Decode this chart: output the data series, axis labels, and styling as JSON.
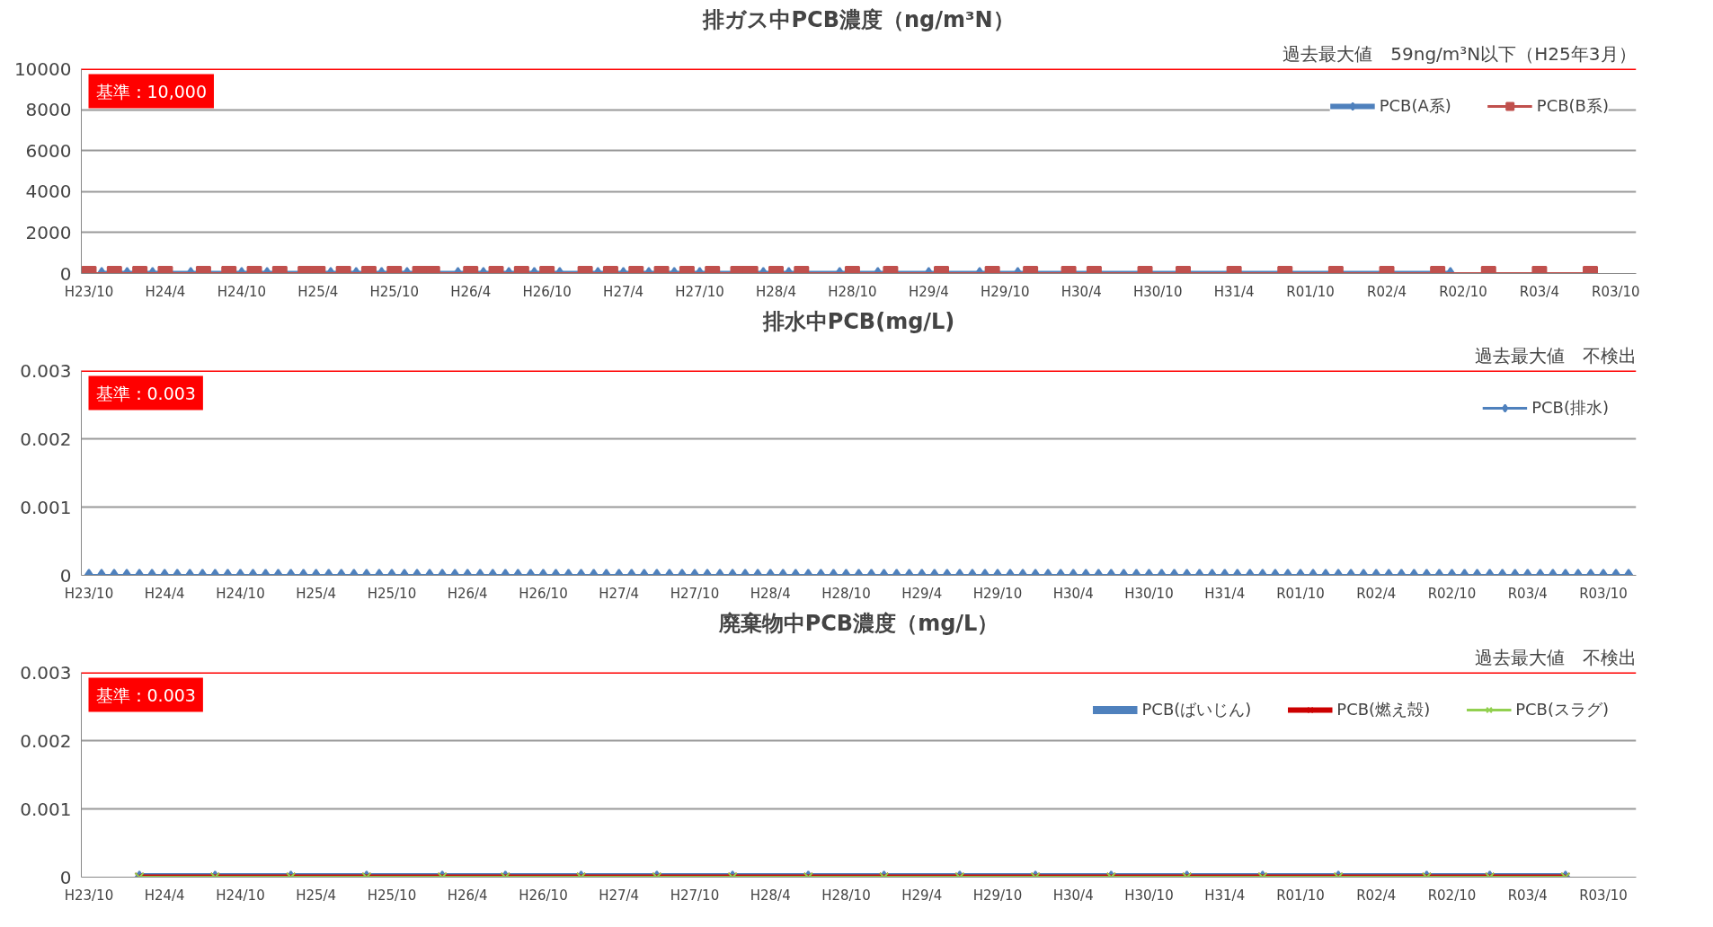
{
  "chart_data": [
    {
      "type": "line",
      "title": "排ガス中PCB濃度（ng/m³N）",
      "annotations": [
        "過去最大値　59ng/m³N以下（H25年3月）"
      ],
      "categories": [
        "H23/10",
        null,
        null,
        null,
        null,
        null,
        "H24/4",
        null,
        null,
        null,
        null,
        null,
        "H24/10",
        null,
        null,
        null,
        null,
        null,
        "H25/4",
        null,
        null,
        null,
        null,
        null,
        "H25/10",
        null,
        null,
        null,
        null,
        null,
        "H26/4",
        null,
        null,
        null,
        null,
        null,
        "H26/10",
        null,
        null,
        null,
        null,
        null,
        "H27/4",
        null,
        null,
        null,
        null,
        null,
        "H27/10",
        null,
        null,
        null,
        null,
        null,
        "H28/4",
        null,
        null,
        null,
        null,
        null,
        "H28/10",
        null,
        null,
        null,
        null,
        null,
        "H29/4",
        null,
        null,
        null,
        null,
        null,
        "H29/10",
        null,
        null,
        null,
        null,
        null,
        "H30/4",
        null,
        null,
        null,
        null,
        null,
        "H30/10",
        null,
        null,
        null,
        null,
        null,
        "H31/4",
        null,
        null,
        null,
        null,
        null,
        "R01/10",
        null,
        null,
        null,
        null,
        null,
        "R02/4",
        null,
        null,
        null,
        null,
        null,
        "R02/10",
        null,
        null,
        null,
        null,
        null,
        "R03/4",
        null,
        null,
        null,
        null,
        null,
        "R03/10",
        null
      ],
      "series": [
        {
          "name": "PCB(A系)",
          "color": "#4f81bd",
          "marker": "diamond",
          "values": [
            null,
            0,
            null,
            0,
            null,
            0,
            null,
            null,
            0,
            null,
            null,
            null,
            0,
            null,
            0,
            null,
            null,
            0,
            null,
            0,
            null,
            0,
            null,
            0,
            null,
            0,
            null,
            null,
            null,
            0,
            null,
            0,
            null,
            0,
            null,
            0,
            null,
            0,
            null,
            null,
            0,
            null,
            0,
            null,
            0,
            null,
            0,
            null,
            0,
            null,
            null,
            null,
            null,
            0,
            null,
            0,
            null,
            null,
            null,
            0,
            null,
            null,
            0,
            null,
            null,
            null,
            0,
            null,
            null,
            null,
            0,
            null,
            null,
            0,
            null,
            null,
            null,
            0,
            null,
            0,
            null,
            null,
            null,
            0,
            null,
            null,
            0,
            null,
            null,
            null,
            0,
            null,
            null,
            null,
            0,
            null,
            null,
            null,
            0,
            null,
            null,
            null,
            0,
            null,
            null,
            null,
            null,
            0,
            null,
            null,
            null,
            null,
            null,
            null,
            null,
            null,
            null,
            null,
            null,
            null,
            null,
            null
          ]
        },
        {
          "name": "PCB(B系)",
          "color": "#c0504d",
          "marker": "square",
          "values": [
            0,
            null,
            0,
            null,
            0,
            null,
            0,
            null,
            null,
            0,
            null,
            0,
            null,
            0,
            null,
            0,
            null,
            0,
            0,
            null,
            0,
            null,
            0,
            null,
            0,
            null,
            0,
            0,
            null,
            null,
            0,
            null,
            0,
            null,
            0,
            null,
            0,
            null,
            null,
            0,
            null,
            0,
            null,
            0,
            null,
            0,
            null,
            0,
            null,
            0,
            null,
            0,
            0,
            null,
            0,
            null,
            0,
            null,
            null,
            null,
            0,
            null,
            null,
            0,
            null,
            null,
            null,
            0,
            null,
            null,
            null,
            0,
            null,
            null,
            0,
            null,
            null,
            0,
            null,
            0,
            null,
            null,
            null,
            0,
            null,
            null,
            0,
            null,
            null,
            null,
            0,
            null,
            null,
            null,
            0,
            null,
            null,
            null,
            0,
            null,
            null,
            null,
            0,
            null,
            null,
            null,
            0,
            null,
            null,
            null,
            0,
            null,
            null,
            null,
            0,
            null,
            null,
            null,
            0,
            null,
            null,
            null
          ]
        }
      ],
      "ylim": [
        0,
        10000
      ],
      "yticks": [
        0,
        2000,
        4000,
        6000,
        8000,
        10000
      ],
      "grid": "y",
      "legend": "top right",
      "ref_lines": [
        {
          "axis": "y",
          "value": 10000,
          "label": "基準：10,000",
          "color": "#ff0000"
        }
      ]
    },
    {
      "type": "line",
      "title": "排水中PCB(mg/L)",
      "annotations": [
        "過去最大値　不検出"
      ],
      "categories": [
        "H23/10",
        null,
        null,
        null,
        null,
        null,
        "H24/4",
        null,
        null,
        null,
        null,
        null,
        "H24/10",
        null,
        null,
        null,
        null,
        null,
        "H25/4",
        null,
        null,
        null,
        null,
        null,
        "H25/10",
        null,
        null,
        null,
        null,
        null,
        "H26/4",
        null,
        null,
        null,
        null,
        null,
        "H26/10",
        null,
        null,
        null,
        null,
        null,
        "H27/4",
        null,
        null,
        null,
        null,
        null,
        "H27/10",
        null,
        null,
        null,
        null,
        null,
        "H28/4",
        null,
        null,
        null,
        null,
        null,
        "H28/10",
        null,
        null,
        null,
        null,
        null,
        "H29/4",
        null,
        null,
        null,
        null,
        null,
        "H29/10",
        null,
        null,
        null,
        null,
        null,
        "H30/4",
        null,
        null,
        null,
        null,
        null,
        "H30/10",
        null,
        null,
        null,
        null,
        null,
        "H31/4",
        null,
        null,
        null,
        null,
        null,
        "R01/10",
        null,
        null,
        null,
        null,
        null,
        "R02/4",
        null,
        null,
        null,
        null,
        null,
        "R02/10",
        null,
        null,
        null,
        null,
        null,
        "R03/4",
        null,
        null,
        null,
        null,
        null,
        "R03/10",
        null,
        null
      ],
      "series": [
        {
          "name": "PCB(排水)",
          "color": "#4f81bd",
          "marker": "diamond",
          "values": [
            0,
            0,
            0,
            0,
            0,
            0,
            0,
            0,
            0,
            0,
            0,
            0,
            0,
            0,
            0,
            0,
            0,
            0,
            0,
            0,
            0,
            0,
            0,
            0,
            0,
            0,
            0,
            0,
            0,
            0,
            0,
            0,
            0,
            0,
            0,
            0,
            0,
            0,
            0,
            0,
            0,
            0,
            0,
            0,
            0,
            0,
            0,
            0,
            0,
            0,
            0,
            0,
            0,
            0,
            0,
            0,
            0,
            0,
            0,
            0,
            0,
            0,
            0,
            0,
            0,
            0,
            0,
            0,
            0,
            0,
            0,
            0,
            0,
            0,
            0,
            0,
            0,
            0,
            0,
            0,
            0,
            0,
            0,
            0,
            0,
            0,
            0,
            0,
            0,
            0,
            0,
            0,
            0,
            0,
            0,
            0,
            0,
            0,
            0,
            0,
            0,
            0,
            0,
            0,
            0,
            0,
            0,
            0,
            0,
            0,
            0,
            0,
            0,
            0,
            0,
            0,
            0,
            0,
            0,
            0,
            0,
            0,
            0
          ]
        }
      ],
      "ylim": [
        0,
        0.003
      ],
      "yticks": [
        0,
        0.001,
        0.002,
        0.003
      ],
      "grid": "y",
      "legend": "top right",
      "ref_lines": [
        {
          "axis": "y",
          "value": 0.003,
          "label": "基準：0.003",
          "color": "#ff0000"
        }
      ]
    },
    {
      "type": "line",
      "title": "廃棄物中PCB濃度（mg/L）",
      "annotations": [
        "過去最大値　不検出"
      ],
      "categories": [
        "H23/10",
        null,
        null,
        null,
        null,
        null,
        "H24/4",
        null,
        null,
        null,
        null,
        null,
        "H24/10",
        null,
        null,
        null,
        null,
        null,
        "H25/4",
        null,
        null,
        null,
        null,
        null,
        "H25/10",
        null,
        null,
        null,
        null,
        null,
        "H26/4",
        null,
        null,
        null,
        null,
        null,
        "H26/10",
        null,
        null,
        null,
        null,
        null,
        "H27/4",
        null,
        null,
        null,
        null,
        null,
        "H27/10",
        null,
        null,
        null,
        null,
        null,
        "H28/4",
        null,
        null,
        null,
        null,
        null,
        "H28/10",
        null,
        null,
        null,
        null,
        null,
        "H29/4",
        null,
        null,
        null,
        null,
        null,
        "H29/10",
        null,
        null,
        null,
        null,
        null,
        "H30/4",
        null,
        null,
        null,
        null,
        null,
        "H30/10",
        null,
        null,
        null,
        null,
        null,
        "H31/4",
        null,
        null,
        null,
        null,
        null,
        "R01/10",
        null,
        null,
        null,
        null,
        null,
        "R02/4",
        null,
        null,
        null,
        null,
        null,
        "R02/10",
        null,
        null,
        null,
        null,
        null,
        "R03/4",
        null,
        null,
        null,
        null,
        null,
        "R03/10",
        null,
        null
      ],
      "series": [
        {
          "name": "PCB(ばいじん)",
          "color": "#4f81bd",
          "marker": "diamond",
          "values": [
            null,
            null,
            null,
            null,
            0,
            null,
            null,
            null,
            null,
            null,
            0,
            null,
            null,
            null,
            null,
            null,
            0,
            null,
            null,
            null,
            null,
            null,
            0,
            null,
            null,
            null,
            null,
            null,
            0,
            null,
            null,
            null,
            null,
            0,
            null,
            null,
            null,
            null,
            null,
            0,
            null,
            null,
            null,
            null,
            null,
            0,
            null,
            null,
            null,
            null,
            null,
            0,
            null,
            null,
            null,
            null,
            null,
            0,
            null,
            null,
            null,
            null,
            null,
            0,
            null,
            null,
            null,
            null,
            null,
            0,
            null,
            null,
            null,
            null,
            null,
            0,
            null,
            null,
            null,
            null,
            null,
            0,
            null,
            null,
            null,
            null,
            null,
            0,
            null,
            null,
            null,
            null,
            null,
            0,
            null,
            null,
            null,
            null,
            null,
            0,
            null,
            null,
            null,
            null,
            null,
            null,
            0,
            null,
            null,
            null,
            null,
            0,
            null,
            null,
            null,
            null,
            null,
            0,
            null,
            null,
            null,
            null,
            null
          ]
        },
        {
          "name": "PCB(燃え殻)",
          "color": "#cc0000",
          "marker": "cross",
          "values": [
            null,
            null,
            null,
            null,
            0,
            null,
            null,
            null,
            null,
            null,
            0,
            null,
            null,
            null,
            null,
            null,
            0,
            null,
            null,
            null,
            null,
            null,
            0,
            null,
            null,
            null,
            null,
            null,
            0,
            null,
            null,
            null,
            null,
            0,
            null,
            null,
            null,
            null,
            null,
            0,
            null,
            null,
            null,
            null,
            null,
            0,
            null,
            null,
            null,
            null,
            null,
            0,
            null,
            null,
            null,
            null,
            null,
            0,
            null,
            null,
            null,
            null,
            null,
            0,
            null,
            null,
            null,
            null,
            null,
            0,
            null,
            null,
            null,
            null,
            null,
            0,
            null,
            null,
            null,
            null,
            null,
            0,
            null,
            null,
            null,
            null,
            null,
            0,
            null,
            null,
            null,
            null,
            null,
            0,
            null,
            null,
            null,
            null,
            null,
            0,
            null,
            null,
            null,
            null,
            null,
            null,
            0,
            null,
            null,
            null,
            null,
            0,
            null,
            null,
            null,
            null,
            null,
            0,
            null,
            null,
            null,
            null,
            null
          ]
        },
        {
          "name": "PCB(スラグ)",
          "color": "#92d050",
          "marker": "cross",
          "values": [
            null,
            null,
            null,
            null,
            0,
            null,
            null,
            null,
            null,
            null,
            0,
            null,
            null,
            null,
            null,
            null,
            0,
            null,
            null,
            null,
            null,
            null,
            0,
            null,
            null,
            null,
            null,
            null,
            0,
            null,
            null,
            null,
            null,
            0,
            null,
            null,
            null,
            null,
            null,
            0,
            null,
            null,
            null,
            null,
            null,
            0,
            null,
            null,
            null,
            null,
            null,
            0,
            null,
            null,
            null,
            null,
            null,
            0,
            null,
            null,
            null,
            null,
            null,
            0,
            null,
            null,
            null,
            null,
            null,
            0,
            null,
            null,
            null,
            null,
            null,
            0,
            null,
            null,
            null,
            null,
            null,
            0,
            null,
            null,
            null,
            null,
            null,
            0,
            null,
            null,
            null,
            null,
            null,
            0,
            null,
            null,
            null,
            null,
            null,
            0,
            null,
            null,
            null,
            null,
            null,
            null,
            0,
            null,
            null,
            null,
            null,
            0,
            null,
            null,
            null,
            null,
            null,
            0,
            null,
            null,
            null,
            null,
            null
          ]
        }
      ],
      "ylim": [
        0,
        0.003
      ],
      "yticks": [
        0,
        0.001,
        0.002,
        0.003
      ],
      "grid": "y",
      "legend": "top right",
      "ref_lines": [
        {
          "axis": "y",
          "value": 0.003,
          "label": "基準：0.003",
          "color": "#ff0000"
        }
      ]
    }
  ]
}
